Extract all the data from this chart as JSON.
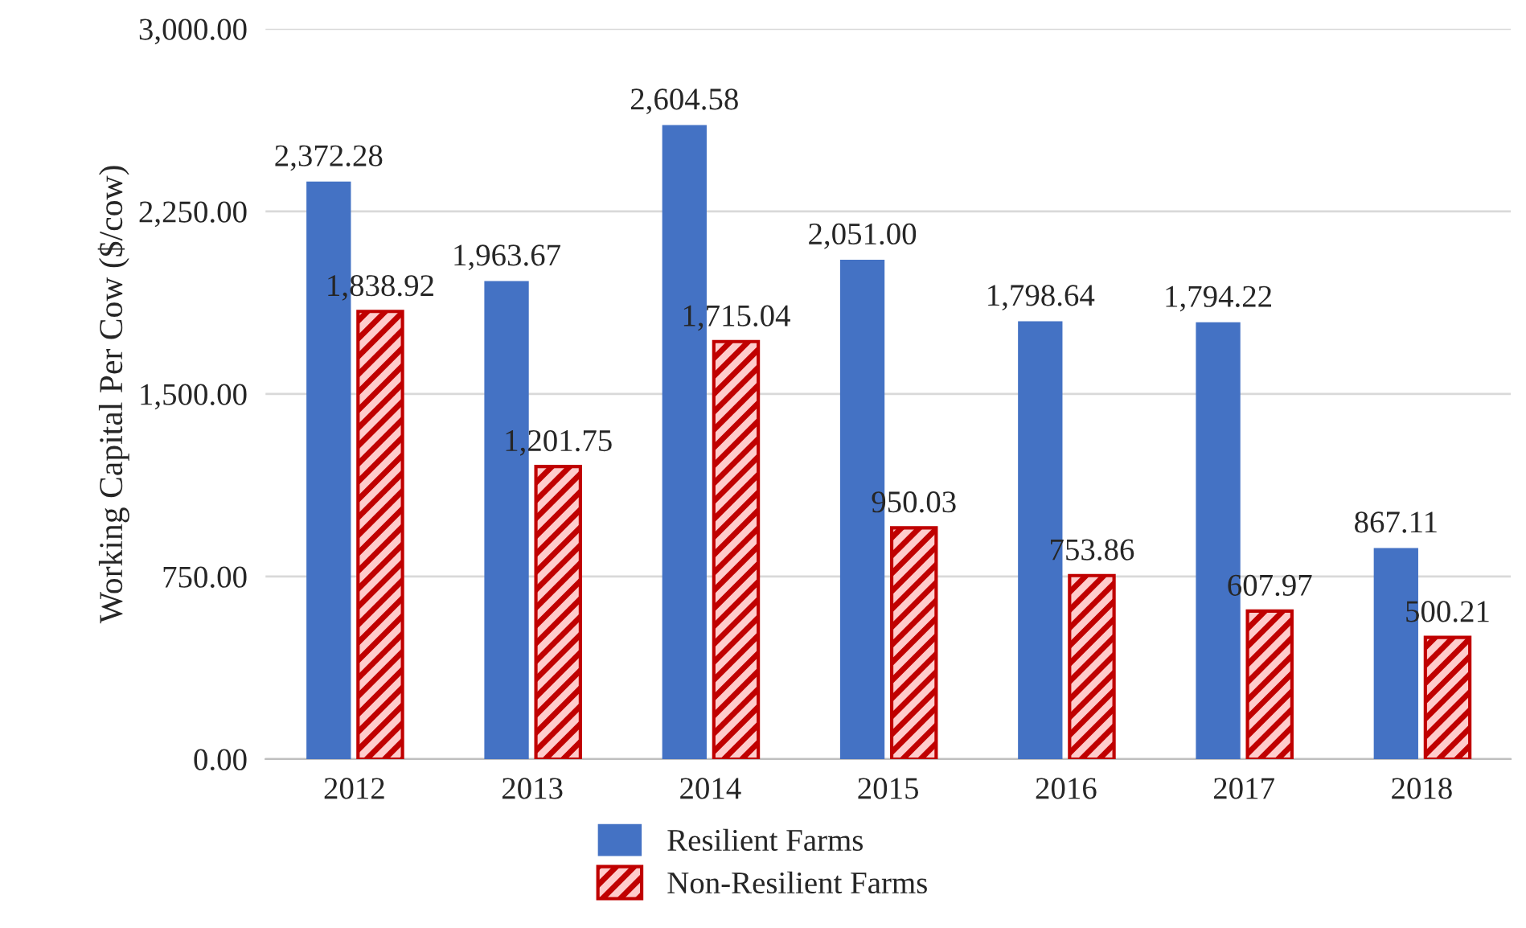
{
  "chart_data": {
    "type": "bar",
    "ylabel": "Working Capital Per Cow ($/cow)",
    "categories": [
      "2012",
      "2013",
      "2014",
      "2015",
      "2016",
      "2017",
      "2018"
    ],
    "series": [
      {
        "name": "Resilient Farms",
        "color": "#4472c4",
        "values": [
          2372.28,
          1963.67,
          2604.58,
          2051.0,
          1798.64,
          1794.22,
          867.11
        ],
        "value_labels": [
          "2,372.28",
          "1,963.67",
          "2,604.58",
          "2,051.00",
          "1,798.64",
          "1,794.22",
          "867.11"
        ]
      },
      {
        "name": "Non-Resilient Farms",
        "color": "#c00000",
        "values": [
          1838.92,
          1201.75,
          1715.04,
          950.03,
          753.86,
          607.97,
          500.21
        ],
        "value_labels": [
          "1,838.92",
          "1,201.75",
          "1,715.04",
          "950.03",
          "753.86",
          "607.97",
          "500.21"
        ]
      }
    ],
    "ylim": [
      0,
      3000
    ],
    "yticks": [
      {
        "value": 0,
        "label": "0.00"
      },
      {
        "value": 750,
        "label": "750.00"
      },
      {
        "value": 1500,
        "label": "1,500.00"
      },
      {
        "value": 2250,
        "label": "2,250.00"
      },
      {
        "value": 3000,
        "label": "3,000.00"
      }
    ],
    "grid": "y",
    "legend": "bottom"
  }
}
